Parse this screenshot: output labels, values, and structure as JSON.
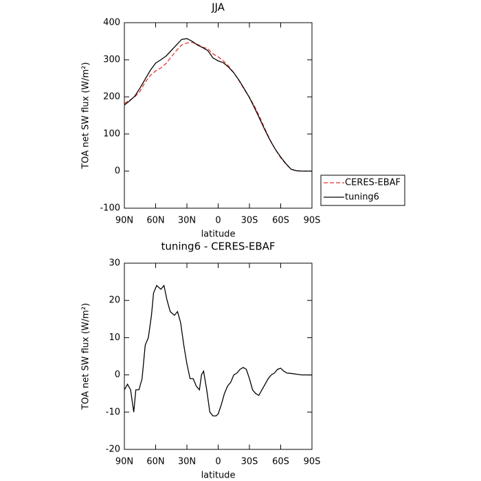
{
  "chart_data": [
    {
      "type": "line",
      "title": "JJA",
      "xlabel": "latitude",
      "ylabel": "TOA net SW flux (W/m²)",
      "x": [
        90,
        85,
        80,
        75,
        70,
        65,
        60,
        55,
        50,
        45,
        40,
        35,
        30,
        25,
        20,
        15,
        10,
        5,
        0,
        -5,
        -10,
        -15,
        -20,
        -25,
        -30,
        -35,
        -40,
        -45,
        -50,
        -55,
        -60,
        -65,
        -70,
        -75,
        -80,
        -85,
        -90
      ],
      "series": [
        {
          "name": "CERES-EBAF",
          "color": "#e8322b",
          "linestyle": "dashed",
          "values": [
            182,
            191,
            200,
            215,
            240,
            258,
            270,
            278,
            290,
            308,
            325,
            340,
            345,
            347,
            342,
            334,
            330,
            316,
            308,
            297,
            283,
            265,
            244,
            220,
            199,
            174,
            145,
            113,
            83,
            58,
            36,
            19,
            5,
            1,
            0,
            0,
            0
          ]
        },
        {
          "name": "tuning6",
          "color": "#000000",
          "linestyle": "solid",
          "values": [
            178,
            189,
            202,
            224,
            248,
            272,
            291,
            300,
            310,
            325,
            340,
            355,
            357,
            350,
            340,
            333,
            325,
            305,
            297,
            292,
            280,
            265,
            245,
            222,
            198,
            170,
            140,
            110,
            82,
            58,
            38,
            20,
            5,
            1,
            0,
            0,
            0
          ]
        }
      ],
      "xlim": [
        90,
        -90
      ],
      "ylim": [
        -100,
        400
      ],
      "xticks": [
        {
          "value": 90,
          "label": "90N"
        },
        {
          "value": 60,
          "label": "60N"
        },
        {
          "value": 30,
          "label": "30N"
        },
        0,
        {
          "value": -30,
          "label": "30S"
        },
        {
          "value": -60,
          "label": "60S"
        },
        {
          "value": -90,
          "label": "90S"
        }
      ],
      "yticks": [
        -100,
        0,
        100,
        200,
        300,
        400
      ]
    },
    {
      "type": "line",
      "title": "tuning6 - CERES-EBAF",
      "xlabel": "latitude",
      "ylabel": "TOA net SW flux (W/m²)",
      "x": [
        90,
        87,
        84,
        81,
        79,
        76,
        73,
        70,
        67,
        64,
        62,
        59,
        55,
        52,
        49,
        46,
        42,
        39,
        36,
        33,
        30,
        27,
        24,
        21,
        18,
        16,
        14,
        11,
        8,
        5,
        2,
        0,
        -3,
        -6,
        -9,
        -12,
        -15,
        -18,
        -21,
        -24,
        -27,
        -30,
        -33,
        -36,
        -39,
        -42,
        -45,
        -48,
        -51,
        -54,
        -57,
        -60,
        -63,
        -66,
        -70,
        -75,
        -80,
        -85,
        -90
      ],
      "values": [
        -4,
        -2.5,
        -4,
        -10,
        -4,
        -4,
        -1,
        8,
        10,
        16,
        22,
        24,
        23,
        24,
        20,
        17,
        16,
        17,
        14,
        8,
        3,
        -1,
        -1,
        -3,
        -4,
        0,
        1,
        -4,
        -10,
        -11,
        -11,
        -10.5,
        -8,
        -5,
        -3,
        -2,
        0,
        0.5,
        1.5,
        2,
        1.5,
        -1,
        -4,
        -5,
        -5.5,
        -4,
        -2.5,
        -1,
        0,
        0.5,
        1.5,
        1.8,
        1,
        0.5,
        0.4,
        0.2,
        0,
        0,
        0
      ],
      "color": "#000000",
      "xlim": [
        90,
        -90
      ],
      "ylim": [
        -20,
        30
      ],
      "xticks": [
        {
          "value": 90,
          "label": "90N"
        },
        {
          "value": 60,
          "label": "60N"
        },
        {
          "value": 30,
          "label": "30N"
        },
        0,
        {
          "value": -30,
          "label": "30S"
        },
        {
          "value": -60,
          "label": "60S"
        },
        {
          "value": -90,
          "label": "90S"
        }
      ],
      "yticks": [
        -20,
        -10,
        0,
        10,
        20,
        30
      ]
    }
  ]
}
